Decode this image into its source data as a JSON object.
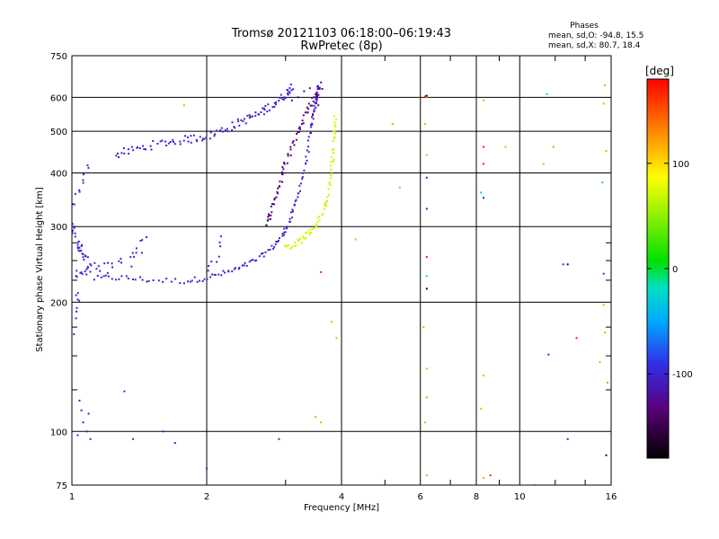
{
  "chart_data": {
    "type": "scatter",
    "title": "Tromsø 20121103 06:18:00–06:19:43",
    "subtitle": "RwPretec (8p)",
    "legend_title": "Phases",
    "stats": [
      "mean, sd,O: -94.8, 15.5",
      "mean, sd,X:  80.7, 18.4"
    ],
    "xlabel": "Frequency [MHz]",
    "ylabel": "Stationary phase Virtual Height [km]",
    "x_scale": "log",
    "y_scale": "log",
    "xlim": [
      1,
      16
    ],
    "ylim": [
      75,
      750
    ],
    "grid": true,
    "x_ticks": [
      1,
      2,
      4,
      6,
      8,
      10,
      16
    ],
    "x_tick_labels": [
      "1",
      "2",
      "4",
      "6",
      "8",
      "10",
      "16"
    ],
    "x_minor_ticks": [
      3,
      5,
      7,
      9,
      12,
      14
    ],
    "y_ticks": [
      75,
      100,
      200,
      300,
      400,
      500,
      600,
      750
    ],
    "y_tick_labels": [
      "75",
      "100",
      "200",
      "300",
      "400",
      "500",
      "600",
      "750"
    ],
    "y_minor_ticks": [
      125,
      150,
      175,
      225,
      250,
      275
    ],
    "colorbar": {
      "label": "[deg]",
      "range": [
        -180,
        180
      ],
      "ticks": [
        100,
        0,
        -100
      ],
      "tick_labels": [
        "100",
        "0",
        "-100"
      ]
    },
    "series": [
      {
        "phase_deg": -100,
        "traces": [
          {
            "kind": "curve",
            "points": [
              [
                1.12,
                227
              ],
              [
                1.3,
                228
              ],
              [
                1.5,
                225
              ],
              [
                1.8,
                224
              ],
              [
                2.0,
                228
              ],
              [
                2.2,
                234
              ],
              [
                2.4,
                241
              ],
              [
                2.6,
                252
              ],
              [
                2.8,
                268
              ],
              [
                2.95,
                285
              ],
              [
                3.05,
                305
              ],
              [
                3.15,
                335
              ],
              [
                3.25,
                380
              ],
              [
                3.35,
                440
              ],
              [
                3.42,
                510
              ],
              [
                3.48,
                560
              ],
              [
                3.52,
                600
              ],
              [
                3.55,
                640
              ]
            ],
            "n": 140,
            "jitter": 0.008
          },
          {
            "kind": "curve",
            "points": [
              [
                1.25,
                440
              ],
              [
                1.4,
                455
              ],
              [
                1.6,
                470
              ],
              [
                1.8,
                478
              ],
              [
                2.0,
                487
              ],
              [
                2.2,
                505
              ],
              [
                2.4,
                528
              ],
              [
                2.6,
                548
              ],
              [
                2.8,
                575
              ],
              [
                3.0,
                610
              ],
              [
                3.1,
                640
              ]
            ],
            "n": 110,
            "jitter": 0.012
          },
          {
            "kind": "curve",
            "points": [
              [
                1.0,
                300
              ],
              [
                1.02,
                285
              ],
              [
                1.04,
                268
              ],
              [
                1.06,
                255
              ],
              [
                1.08,
                242
              ]
            ],
            "n": 30,
            "jitter": 0.02
          },
          {
            "kind": "curve",
            "points": [
              [
                1.0,
                232
              ],
              [
                1.05,
                236
              ],
              [
                1.1,
                240
              ],
              [
                1.15,
                236
              ],
              [
                1.2,
                242
              ],
              [
                1.3,
                250
              ]
            ],
            "n": 25,
            "jitter": 0.02
          },
          {
            "kind": "curve",
            "points": [
              [
                1.0,
                330
              ],
              [
                1.03,
                360
              ],
              [
                1.06,
                385
              ],
              [
                1.09,
                410
              ]
            ],
            "n": 10,
            "jitter": 0.015
          },
          {
            "kind": "curve",
            "points": [
              [
                1.35,
                250
              ],
              [
                1.4,
                265
              ],
              [
                1.45,
                278
              ]
            ],
            "n": 10,
            "jitter": 0.02
          },
          {
            "kind": "curve",
            "points": [
              [
                2.0,
                240
              ],
              [
                2.1,
                258
              ],
              [
                2.15,
                275
              ]
            ],
            "n": 8,
            "jitter": 0.02
          },
          {
            "kind": "curve",
            "points": [
              [
                1.0,
                170
              ],
              [
                1.02,
                195
              ],
              [
                1.03,
                215
              ]
            ],
            "n": 10,
            "jitter": 0.02
          },
          {
            "kind": "scatter",
            "points": [
              [
                1.05,
                112
              ],
              [
                1.06,
                105
              ],
              [
                1.08,
                100
              ],
              [
                1.1,
                96
              ],
              [
                1.04,
                118
              ],
              [
                1.03,
                98
              ],
              [
                1.09,
                110
              ],
              [
                1.31,
                124
              ],
              [
                1.37,
                96
              ],
              [
                1.6,
                100
              ],
              [
                1.7,
                94
              ],
              [
                2.0,
                82
              ],
              [
                2.9,
                96
              ],
              [
                12.8,
                96
              ],
              [
                11.6,
                151
              ],
              [
                15.4,
                233
              ],
              [
                12.5,
                245
              ],
              [
                6.2,
                330
              ],
              [
                6.2,
                390
              ],
              [
                8.3,
                350
              ]
            ]
          }
        ]
      },
      {
        "phase_deg": -130,
        "traces": [
          {
            "kind": "curve",
            "points": [
              [
                2.7,
                300
              ],
              [
                2.8,
                330
              ],
              [
                2.9,
                370
              ],
              [
                3.0,
                420
              ],
              [
                3.15,
                480
              ],
              [
                3.3,
                540
              ],
              [
                3.45,
                590
              ],
              [
                3.6,
                630
              ]
            ],
            "n": 70,
            "jitter": 0.01
          },
          {
            "kind": "scatter",
            "points": [
              [
                3.1,
                590
              ],
              [
                3.2,
                600
              ],
              [
                3.3,
                620
              ],
              [
                3.4,
                630
              ],
              [
                3.5,
                610
              ],
              [
                3.6,
                650
              ],
              [
                3.55,
                575
              ],
              [
                3.45,
                545
              ]
            ]
          }
        ]
      },
      {
        "phase_deg": 70,
        "traces": [
          {
            "kind": "curve",
            "points": [
              [
                3.0,
                268
              ],
              [
                3.15,
                273
              ],
              [
                3.3,
                283
              ],
              [
                3.45,
                295
              ],
              [
                3.6,
                315
              ],
              [
                3.7,
                345
              ],
              [
                3.78,
                390
              ],
              [
                3.83,
                440
              ],
              [
                3.86,
                490
              ],
              [
                3.88,
                540
              ]
            ],
            "n": 75,
            "jitter": 0.01
          }
        ]
      },
      {
        "phase_deg": 120,
        "traces": [
          {
            "kind": "scatter",
            "points": [
              [
                1.78,
                575
              ],
              [
                5.2,
                520
              ],
              [
                6.2,
                600
              ],
              [
                6.15,
                520
              ],
              [
                6.2,
                440
              ],
              [
                8.3,
                590
              ],
              [
                9.3,
                460
              ],
              [
                11.3,
                420
              ],
              [
                15.5,
                640
              ],
              [
                15.4,
                580
              ],
              [
                15.6,
                450
              ],
              [
                3.8,
                180
              ],
              [
                6.1,
                175
              ],
              [
                6.2,
                140
              ],
              [
                6.15,
                105
              ],
              [
                8.3,
                135
              ],
              [
                8.2,
                113
              ],
              [
                3.6,
                105
              ],
              [
                4.3,
                280
              ],
              [
                6.2,
                79
              ],
              [
                8.3,
                78
              ],
              [
                10.8,
                75
              ],
              [
                15.4,
                197
              ],
              [
                15.5,
                170
              ],
              [
                15.1,
                145
              ],
              [
                3.9,
                165
              ],
              [
                5.4,
                370
              ]
            ]
          }
        ]
      },
      {
        "phase_deg": 170,
        "traces": [
          {
            "kind": "scatter",
            "points": [
              [
                3.6,
                235
              ],
              [
                6.2,
                255
              ],
              [
                8.3,
                460
              ],
              [
                13.4,
                165
              ],
              [
                8.6,
                79
              ],
              [
                8.3,
                420
              ],
              [
                6.15,
                603
              ]
            ]
          }
        ]
      },
      {
        "phase_deg": 30,
        "traces": [
          {
            "kind": "scatter",
            "points": [
              [
                3.5,
                108
              ],
              [
                11.9,
                460
              ],
              [
                15.7,
                130
              ],
              [
                6.2,
                120
              ]
            ]
          }
        ]
      },
      {
        "phase_deg": -30,
        "traces": [
          {
            "kind": "scatter",
            "points": [
              [
                8.2,
                360
              ],
              [
                6.2,
                230
              ],
              [
                11.5,
                610
              ],
              [
                15.3,
                380
              ]
            ]
          }
        ]
      },
      {
        "phase_deg": -160,
        "traces": [
          {
            "kind": "scatter",
            "points": [
              [
                6.2,
                605
              ],
              [
                12.8,
                245
              ],
              [
                15.6,
                88
              ],
              [
                6.2,
                215
              ]
            ]
          }
        ]
      }
    ]
  }
}
